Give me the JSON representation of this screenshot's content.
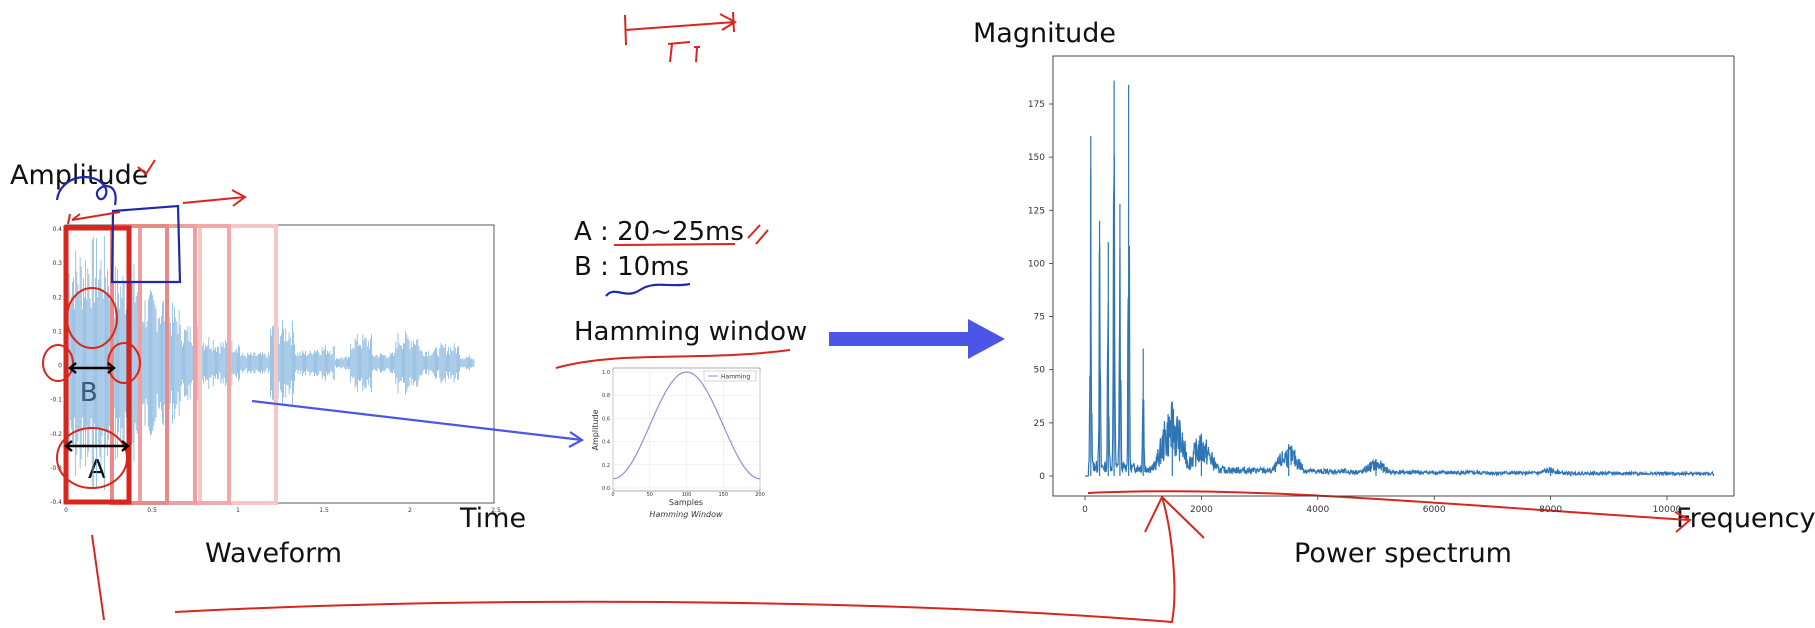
{
  "waveform": {
    "title": "Waveform",
    "ylabel": "Amplitude",
    "xlabel": "Time",
    "yticks": [
      "0.4",
      "0.3",
      "0.2",
      "0.1",
      "0",
      "-0.1",
      "-0.2",
      "-0.3",
      "-0.4"
    ],
    "xticks": [
      "0",
      "0.5",
      "1",
      "1.5",
      "2",
      "2.5"
    ]
  },
  "notes": {
    "a_text": "A : 20~25ms",
    "b_text": "B : 10ms",
    "hamming_title": "Hamming window",
    "marker_a": "A",
    "marker_b": "B",
    "ft_text": "FT"
  },
  "hamming_chart": {
    "legend": "Hamming",
    "xlabel": "Samples",
    "ylabel": "Amplitude",
    "caption": "Hamming Window",
    "yticks": [
      "1.0",
      "0.8",
      "0.6",
      "0.4",
      "0.2",
      "0.0"
    ],
    "xticks": [
      "0",
      "50",
      "100",
      "150",
      "200"
    ]
  },
  "spectrum": {
    "title": "Power spectrum",
    "ylabel": "Magnitude",
    "xlabel": "Frequency",
    "yticks": [
      "175",
      "150",
      "125",
      "100",
      "75",
      "50",
      "25",
      "0"
    ],
    "xticks": [
      "0",
      "2000",
      "4000",
      "6000",
      "8000",
      "10000"
    ]
  },
  "colors": {
    "waveform": "#5b9bd1",
    "spectrum": "#2e75b6",
    "annotation_red": "#d8261c",
    "annotation_blue": "#1f2aa6",
    "arrow": "#4b55e6"
  },
  "chart_data": [
    {
      "type": "line",
      "name": "power-spectrum",
      "xlabel": "Frequency",
      "ylabel": "Magnitude",
      "xlim": [
        0,
        11000
      ],
      "ylim": [
        -5,
        190
      ],
      "peaks": [
        {
          "x": 100,
          "y": 160
        },
        {
          "x": 250,
          "y": 120
        },
        {
          "x": 400,
          "y": 110
        },
        {
          "x": 500,
          "y": 186
        },
        {
          "x": 600,
          "y": 128
        },
        {
          "x": 750,
          "y": 184
        },
        {
          "x": 1000,
          "y": 60
        },
        {
          "x": 1500,
          "y": 35
        },
        {
          "x": 2000,
          "y": 20
        },
        {
          "x": 3500,
          "y": 15
        },
        {
          "x": 5000,
          "y": 8
        },
        {
          "x": 8000,
          "y": 4
        },
        {
          "x": 10800,
          "y": 1
        }
      ]
    },
    {
      "type": "line",
      "name": "hamming-window",
      "xlabel": "Samples",
      "ylabel": "Amplitude",
      "xlim": [
        0,
        200
      ],
      "ylim": [
        0,
        1.0
      ],
      "x": [
        0,
        25,
        50,
        75,
        100,
        125,
        150,
        175,
        200
      ],
      "values": [
        0.08,
        0.22,
        0.54,
        0.86,
        1.0,
        0.86,
        0.54,
        0.22,
        0.08
      ]
    }
  ]
}
